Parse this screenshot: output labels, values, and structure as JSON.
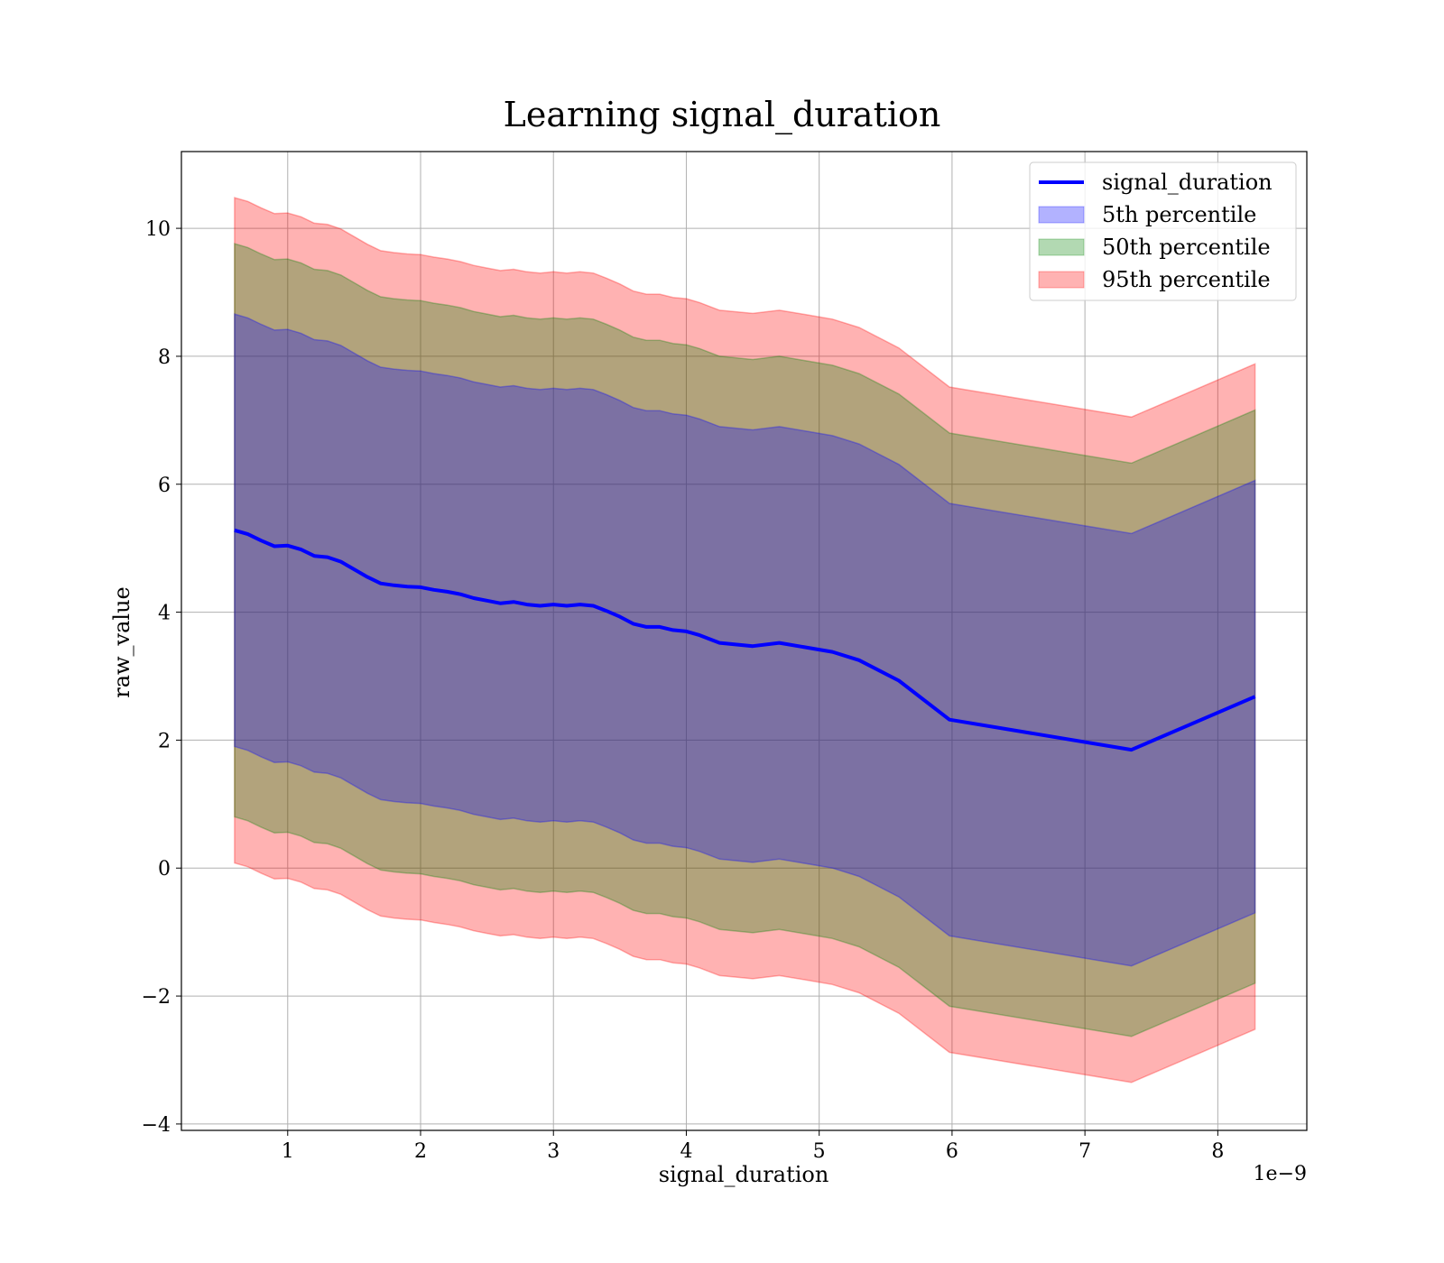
{
  "chart_data": {
    "type": "area",
    "title": "Learning signal_duration",
    "xlabel": "signal_duration",
    "ylabel": "raw_value",
    "x_offset_label": "1e−9",
    "xlim": [
      0.2,
      8.67
    ],
    "ylim": [
      -4.1,
      11.2
    ],
    "x_ticks": [
      1,
      2,
      3,
      4,
      5,
      6,
      7,
      8
    ],
    "x_tick_labels": [
      "1",
      "2",
      "3",
      "4",
      "5",
      "6",
      "7",
      "8"
    ],
    "y_ticks": [
      -4,
      -2,
      0,
      2,
      4,
      6,
      8,
      10
    ],
    "y_tick_labels": [
      "−4",
      "−2",
      "0",
      "2",
      "4",
      "6",
      "8",
      "10"
    ],
    "grid": true,
    "legend_position": "top-right",
    "colors": {
      "line": "#0000ff",
      "p5": "#0000ff",
      "p50": "#008000",
      "p95": "#ff0000"
    },
    "x": [
      0.6,
      0.7,
      0.8,
      0.9,
      1.0,
      1.1,
      1.2,
      1.3,
      1.4,
      1.5,
      1.6,
      1.7,
      1.8,
      1.9,
      2.0,
      2.1,
      2.2,
      2.3,
      2.4,
      2.5,
      2.6,
      2.7,
      2.8,
      2.9,
      3.0,
      3.1,
      3.2,
      3.3,
      3.4,
      3.5,
      3.6,
      3.7,
      3.8,
      3.9,
      4.0,
      4.1,
      4.25,
      4.5,
      4.7,
      4.9,
      5.1,
      5.3,
      5.6,
      5.98,
      7.35,
      8.28
    ],
    "series": [
      {
        "name": "signal_duration",
        "values": [
          5.28,
          5.22,
          5.12,
          5.03,
          5.04,
          4.98,
          4.88,
          4.86,
          4.79,
          4.67,
          4.55,
          4.45,
          4.42,
          4.4,
          4.39,
          4.35,
          4.32,
          4.28,
          4.22,
          4.18,
          4.14,
          4.16,
          4.12,
          4.1,
          4.12,
          4.1,
          4.12,
          4.1,
          4.02,
          3.93,
          3.82,
          3.77,
          3.77,
          3.72,
          3.7,
          3.64,
          3.52,
          3.47,
          3.52,
          3.45,
          3.38,
          3.25,
          2.93,
          2.32,
          1.85,
          2.68
        ]
      },
      {
        "name": "5th percentile",
        "offset": 3.38
      },
      {
        "name": "50th percentile",
        "offset": 4.48
      },
      {
        "name": "95th percentile",
        "offset": 5.2
      }
    ]
  }
}
